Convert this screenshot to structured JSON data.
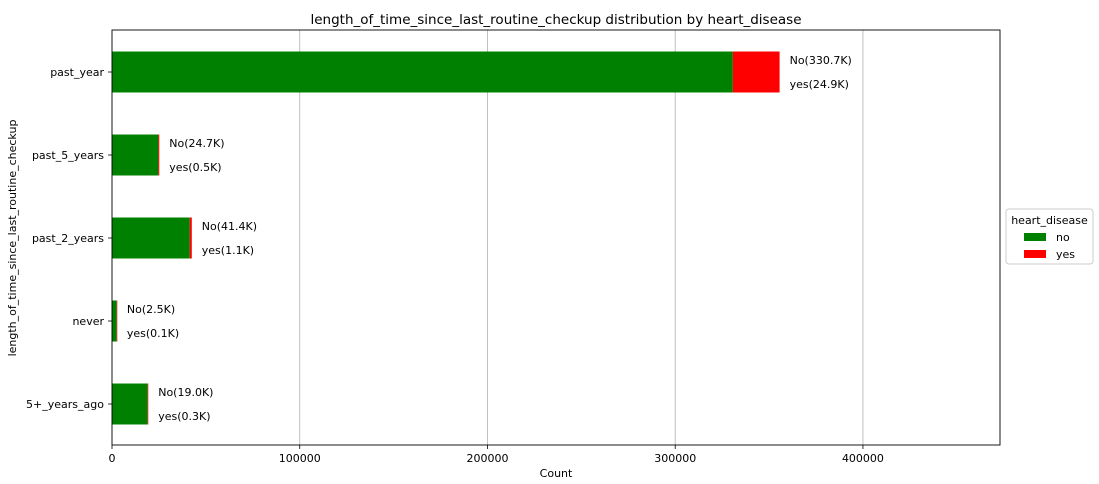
{
  "chart_data": {
    "type": "bar",
    "orientation": "horizontal",
    "stacked": true,
    "title": "length_of_time_since_last_routine_checkup distribution by heart_disease",
    "xlabel": "Count",
    "ylabel": "length_of_time_since_last_routine_checkup",
    "categories": [
      "past_year",
      "past_5_years",
      "past_2_years",
      "never",
      "5+_years_ago"
    ],
    "series": [
      {
        "name": "no",
        "color": "#008000",
        "values": [
          330700,
          24700,
          41400,
          2500,
          19000
        ],
        "labels": [
          "No(330.7K)",
          "No(24.7K)",
          "No(41.4K)",
          "No(2.5K)",
          "No(19.0K)"
        ]
      },
      {
        "name": "yes",
        "color": "#ff0000",
        "values": [
          24900,
          500,
          1100,
          100,
          300
        ],
        "labels": [
          "yes(24.9K)",
          "yes(0.5K)",
          "yes(1.1K)",
          "yes(0.1K)",
          "yes(0.3K)"
        ]
      }
    ],
    "xlim": [
      0,
      473000
    ],
    "xticks": [
      0,
      100000,
      200000,
      300000,
      400000
    ],
    "xtick_labels": [
      "0",
      "100000",
      "200000",
      "300000",
      "400000"
    ],
    "grid": "vertical",
    "legend": {
      "title": "heart_disease",
      "position": "center-right",
      "entries": [
        "no",
        "yes"
      ]
    }
  }
}
